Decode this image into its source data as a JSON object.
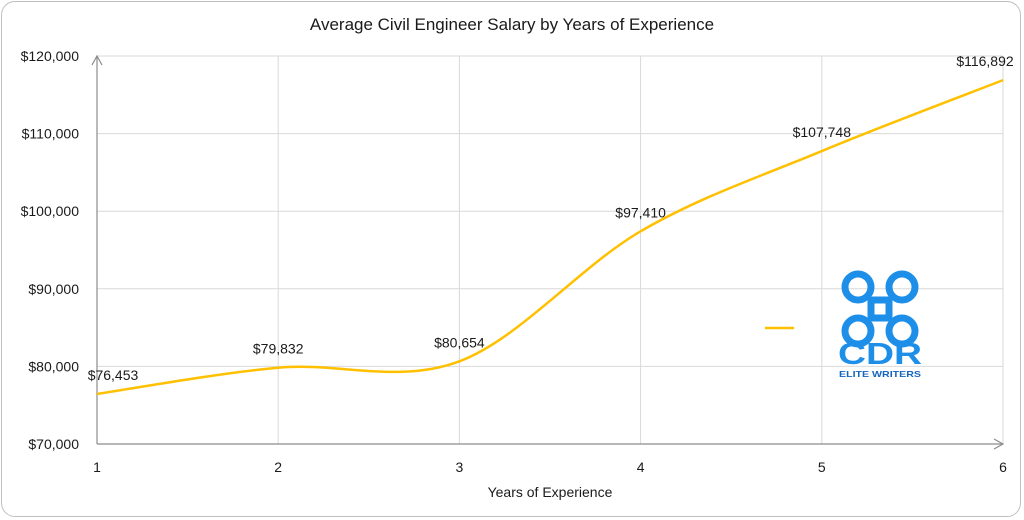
{
  "chart_data": {
    "type": "line",
    "title": "Average Civil Engineer Salary by Years of Experience",
    "xlabel": "Years of Experience",
    "ylabel": "",
    "x": [
      1,
      2,
      3,
      4,
      5,
      6
    ],
    "x_tick_labels": [
      "1",
      "2",
      "3",
      "4",
      "5",
      "6"
    ],
    "ylim": [
      70000,
      120000
    ],
    "y_ticks": [
      70000,
      80000,
      90000,
      100000,
      110000,
      120000
    ],
    "y_tick_labels": [
      "$70,000",
      "$80,000",
      "$90,000",
      "$100,000",
      "$110,000",
      "$120,000"
    ],
    "series": [
      {
        "values": [
          76453,
          79832,
          80654,
          97410,
          107748,
          116892
        ],
        "labels": [
          "$76,453",
          "$79,832",
          "$80,654",
          "$97,410",
          "$107,748",
          "$116,892"
        ],
        "color": "#FFC000",
        "smooth": true
      }
    ],
    "grid": true,
    "legend": "right"
  },
  "logo": {
    "text": "CDR",
    "subtext": "ELITE WRITERS",
    "icon": "command-key-icon",
    "color": "#1E8FE8",
    "subtext_color": "#1565C0"
  }
}
